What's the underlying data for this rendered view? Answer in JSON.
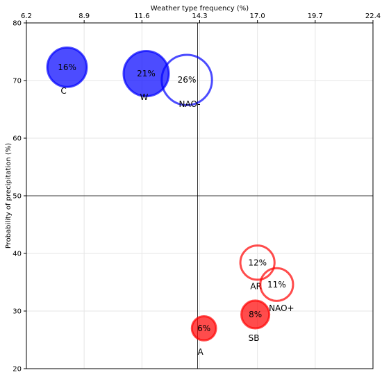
{
  "chart_data": {
    "type": "scatter",
    "title": "",
    "xlabel": "Weather type frequency (%)",
    "ylabel": "Probability of precipitation (%)",
    "xlim": [
      6.2,
      22.4
    ],
    "ylim": [
      20,
      80
    ],
    "x_ticks": [
      "6.2",
      "8.9",
      "11.6",
      "14.3",
      "17.0",
      "19.7",
      "22.4"
    ],
    "y_ticks": [
      "20",
      "30",
      "40",
      "50",
      "60",
      "70",
      "80"
    ],
    "x_axis_position": "top",
    "grid": true,
    "reference_lines": {
      "x": 14.2,
      "y": 50
    },
    "points": [
      {
        "label": "C",
        "x": 8.1,
        "y": 72.3,
        "text": "16%",
        "size": 16,
        "color": "#0000ff",
        "filled": true
      },
      {
        "label": "W",
        "x": 11.8,
        "y": 71.2,
        "text": "21%",
        "size": 21,
        "color": "#0000ff",
        "filled": true
      },
      {
        "label": "NAO-",
        "x": 13.7,
        "y": 70.1,
        "text": "26%",
        "size": 26,
        "color": "#0000ff",
        "filled": false
      },
      {
        "label": "AR",
        "x": 17.0,
        "y": 38.4,
        "text": "12%",
        "size": 12,
        "color": "#ff0000",
        "filled": false
      },
      {
        "label": "NAO+",
        "x": 17.9,
        "y": 34.6,
        "text": "11%",
        "size": 11,
        "color": "#ff0000",
        "filled": false
      },
      {
        "label": "SB",
        "x": 16.9,
        "y": 29.4,
        "text": "8%",
        "size": 8,
        "color": "#ff0000",
        "filled": true
      },
      {
        "label": "A",
        "x": 14.5,
        "y": 27.0,
        "text": "6%",
        "size": 6,
        "color": "#ff0000",
        "filled": true
      }
    ]
  }
}
